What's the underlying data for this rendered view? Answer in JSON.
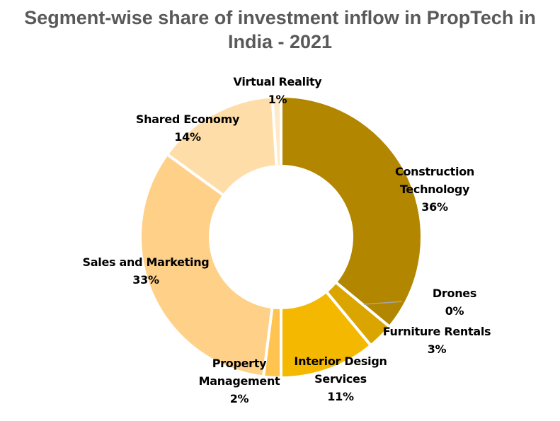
{
  "chart_data": {
    "type": "pie",
    "variant": "donut",
    "title": "Segment-wise share of investment inflow in PropTech in India - 2021",
    "unit": "%",
    "legend": "none",
    "slices": [
      {
        "label": "Construction Technology",
        "value": 36,
        "display": "36%",
        "color": "#B38600"
      },
      {
        "label": "Drones",
        "value": 0,
        "display": "0%",
        "color": "#A07800"
      },
      {
        "label": "Furniture Rentals",
        "value": 3,
        "display": "3%",
        "color": "#DBA500"
      },
      {
        "label": "Interior Design Services",
        "value": 11,
        "display": "11%",
        "color": "#F5B800"
      },
      {
        "label": "Property Management",
        "value": 2,
        "display": "2%",
        "color": "#FFC44F"
      },
      {
        "label": "Sales and Marketing",
        "value": 33,
        "display": "33%",
        "color": "#FFD088"
      },
      {
        "label": "Shared Economy",
        "value": 14,
        "display": "14%",
        "color": "#FFDDA8"
      },
      {
        "label": "Virtual Reality",
        "value": 1,
        "display": "1%",
        "color": "#FFE9C6"
      }
    ]
  }
}
